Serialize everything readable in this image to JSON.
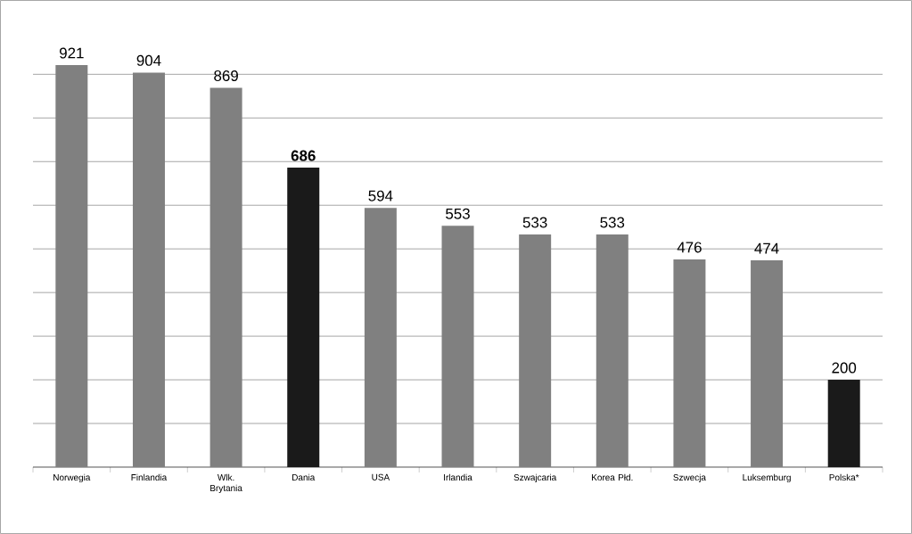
{
  "chart_data": {
    "type": "bar",
    "categories": [
      "Norwegia",
      "Finlandia",
      "Wlk. Brytania",
      "Dania",
      "USA",
      "Irlandia",
      "Szwajcaria",
      "Korea Płd.",
      "Szwecja",
      "Luksemburg",
      "Polska*"
    ],
    "values": [
      921,
      904,
      869,
      686,
      594,
      553,
      533,
      533,
      476,
      474,
      200
    ],
    "colors": [
      "#808080",
      "#808080",
      "#808080",
      "#1a1a1a",
      "#808080",
      "#808080",
      "#808080",
      "#808080",
      "#808080",
      "#808080",
      "#1a1a1a"
    ],
    "value_labels": [
      "921",
      "904",
      "869",
      "**686**",
      "594",
      "553",
      "533",
      "533",
      "476",
      "474",
      "200"
    ],
    "tick_labels": "x",
    "grid": "y"
  }
}
